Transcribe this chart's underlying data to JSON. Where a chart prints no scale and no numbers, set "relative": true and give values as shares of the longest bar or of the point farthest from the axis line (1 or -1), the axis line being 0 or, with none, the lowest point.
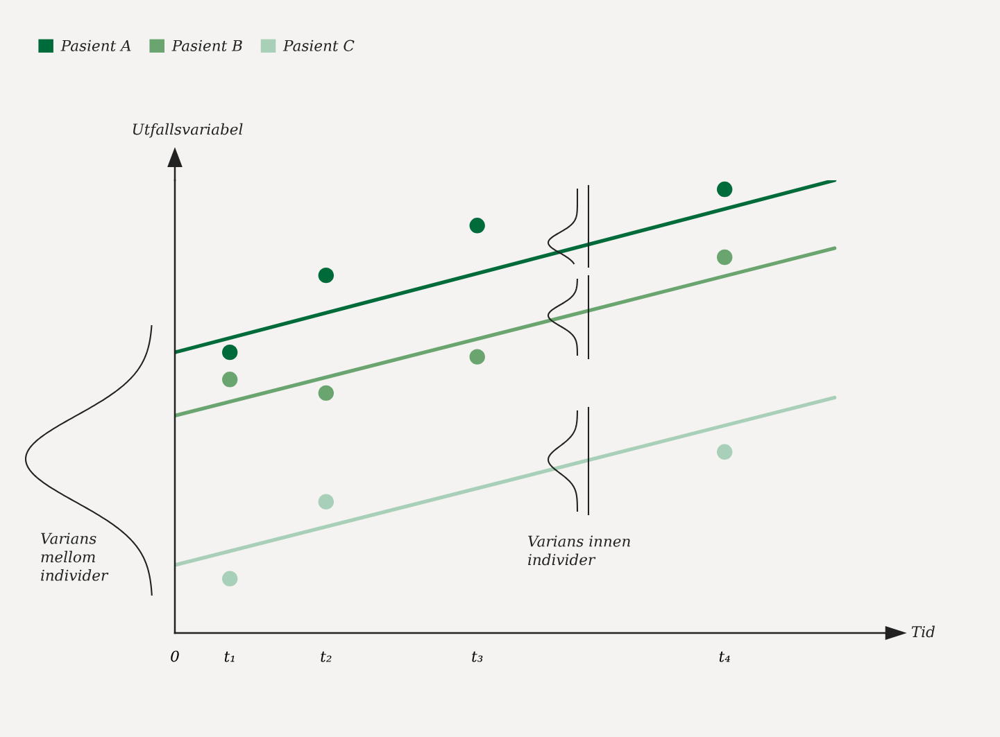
{
  "chart_data": {
    "type": "scatter",
    "relative": true,
    "ylabel": "Utfallsvariabel",
    "xlabel": "Tid",
    "categories": [
      "0",
      null,
      null,
      null,
      "t₁",
      null,
      null,
      null,
      null,
      null,
      null,
      "t₂",
      null,
      null,
      null,
      null,
      null,
      null,
      null,
      null,
      null,
      null,
      "t₃",
      null,
      null,
      null,
      null,
      null,
      null,
      null,
      null,
      null,
      null,
      null,
      null,
      null,
      null,
      null,
      null,
      null,
      "t₄",
      null,
      null,
      null,
      null,
      null,
      null,
      null,
      null
    ],
    "tick_labels": "x",
    "legend": "top left",
    "marker": "circle",
    "series": [
      {
        "name": "Pasient A",
        "color": "#006b3a",
        "values": [
          null,
          null,
          null,
          null,
          0.62,
          null,
          null,
          null,
          null,
          null,
          null,
          0.79,
          null,
          null,
          null,
          null,
          null,
          null,
          null,
          null,
          null,
          null,
          0.9,
          null,
          null,
          null,
          null,
          null,
          null,
          null,
          null,
          null,
          null,
          null,
          null,
          null,
          null,
          null,
          null,
          null,
          0.98,
          null,
          null,
          null,
          null,
          null,
          null,
          null,
          null
        ]
      },
      {
        "name": "Pasient B",
        "color": "#6aa56f",
        "values": [
          null,
          null,
          null,
          null,
          0.56,
          null,
          null,
          null,
          null,
          null,
          null,
          0.53,
          null,
          null,
          null,
          null,
          null,
          null,
          null,
          null,
          null,
          null,
          0.61,
          null,
          null,
          null,
          null,
          null,
          null,
          null,
          null,
          null,
          null,
          null,
          null,
          null,
          null,
          null,
          null,
          null,
          0.83,
          null,
          null,
          null,
          null,
          null,
          null,
          null,
          null
        ]
      },
      {
        "name": "Pasient C",
        "color": "#a8cfb8",
        "values": [
          null,
          null,
          null,
          null,
          0.12,
          null,
          null,
          null,
          null,
          null,
          null,
          0.29,
          null,
          null,
          null,
          null,
          null,
          null,
          null,
          null,
          null,
          null,
          null,
          null,
          null,
          null,
          null,
          null,
          null,
          null,
          null,
          null,
          null,
          null,
          null,
          null,
          null,
          null,
          null,
          null,
          0.4,
          null,
          null,
          null,
          null,
          null,
          null,
          null,
          null
        ]
      },
      {
        "type": "line",
        "marker": "none",
        "color": "#006b3a",
        "values": [
          0.62,
          null,
          null,
          null,
          null,
          null,
          null,
          null,
          null,
          null,
          null,
          null,
          null,
          null,
          null,
          null,
          null,
          null,
          null,
          null,
          null,
          null,
          null,
          null,
          null,
          null,
          null,
          null,
          null,
          null,
          null,
          null,
          null,
          null,
          null,
          null,
          null,
          null,
          null,
          null,
          null,
          null,
          null,
          null,
          null,
          null,
          null,
          null,
          1.0
        ]
      },
      {
        "type": "line",
        "marker": "none",
        "color": "#6aa56f",
        "values": [
          0.48,
          null,
          null,
          null,
          null,
          null,
          null,
          null,
          null,
          null,
          null,
          null,
          null,
          null,
          null,
          null,
          null,
          null,
          null,
          null,
          null,
          null,
          null,
          null,
          null,
          null,
          null,
          null,
          null,
          null,
          null,
          null,
          null,
          null,
          null,
          null,
          null,
          null,
          null,
          null,
          null,
          null,
          null,
          null,
          null,
          null,
          null,
          null,
          0.85
        ]
      },
      {
        "type": "line",
        "marker": "none",
        "color": "#a8cfb8",
        "values": [
          0.15,
          null,
          null,
          null,
          null,
          null,
          null,
          null,
          null,
          null,
          null,
          null,
          null,
          null,
          null,
          null,
          null,
          null,
          null,
          null,
          null,
          null,
          null,
          null,
          null,
          null,
          null,
          null,
          null,
          null,
          null,
          null,
          null,
          null,
          null,
          null,
          null,
          null,
          null,
          null,
          null,
          null,
          null,
          null,
          null,
          null,
          null,
          null,
          0.52
        ]
      }
    ],
    "annotations": [
      "Varians\nmellom\nindivider",
      "Varians innen\nindivider"
    ]
  }
}
